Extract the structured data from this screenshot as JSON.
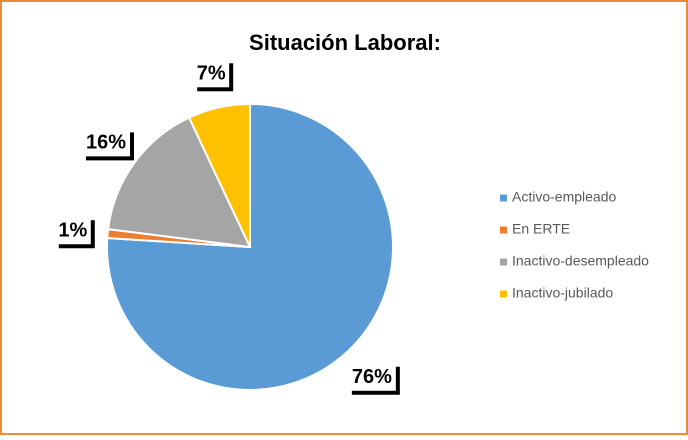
{
  "chart_data": {
    "type": "pie",
    "title": "Situación Laboral:",
    "categories": [
      "Activo-empleado",
      "En ERTE",
      "Inactivo-desempleado",
      "Inactivo-jubilado"
    ],
    "values": [
      76,
      1,
      16,
      7
    ],
    "value_labels": [
      "76%",
      "1%",
      "16%",
      "7%"
    ],
    "colors": [
      "#5b9bd5",
      "#ed7d31",
      "#a5a5a5",
      "#ffc000"
    ],
    "legend": "right"
  }
}
